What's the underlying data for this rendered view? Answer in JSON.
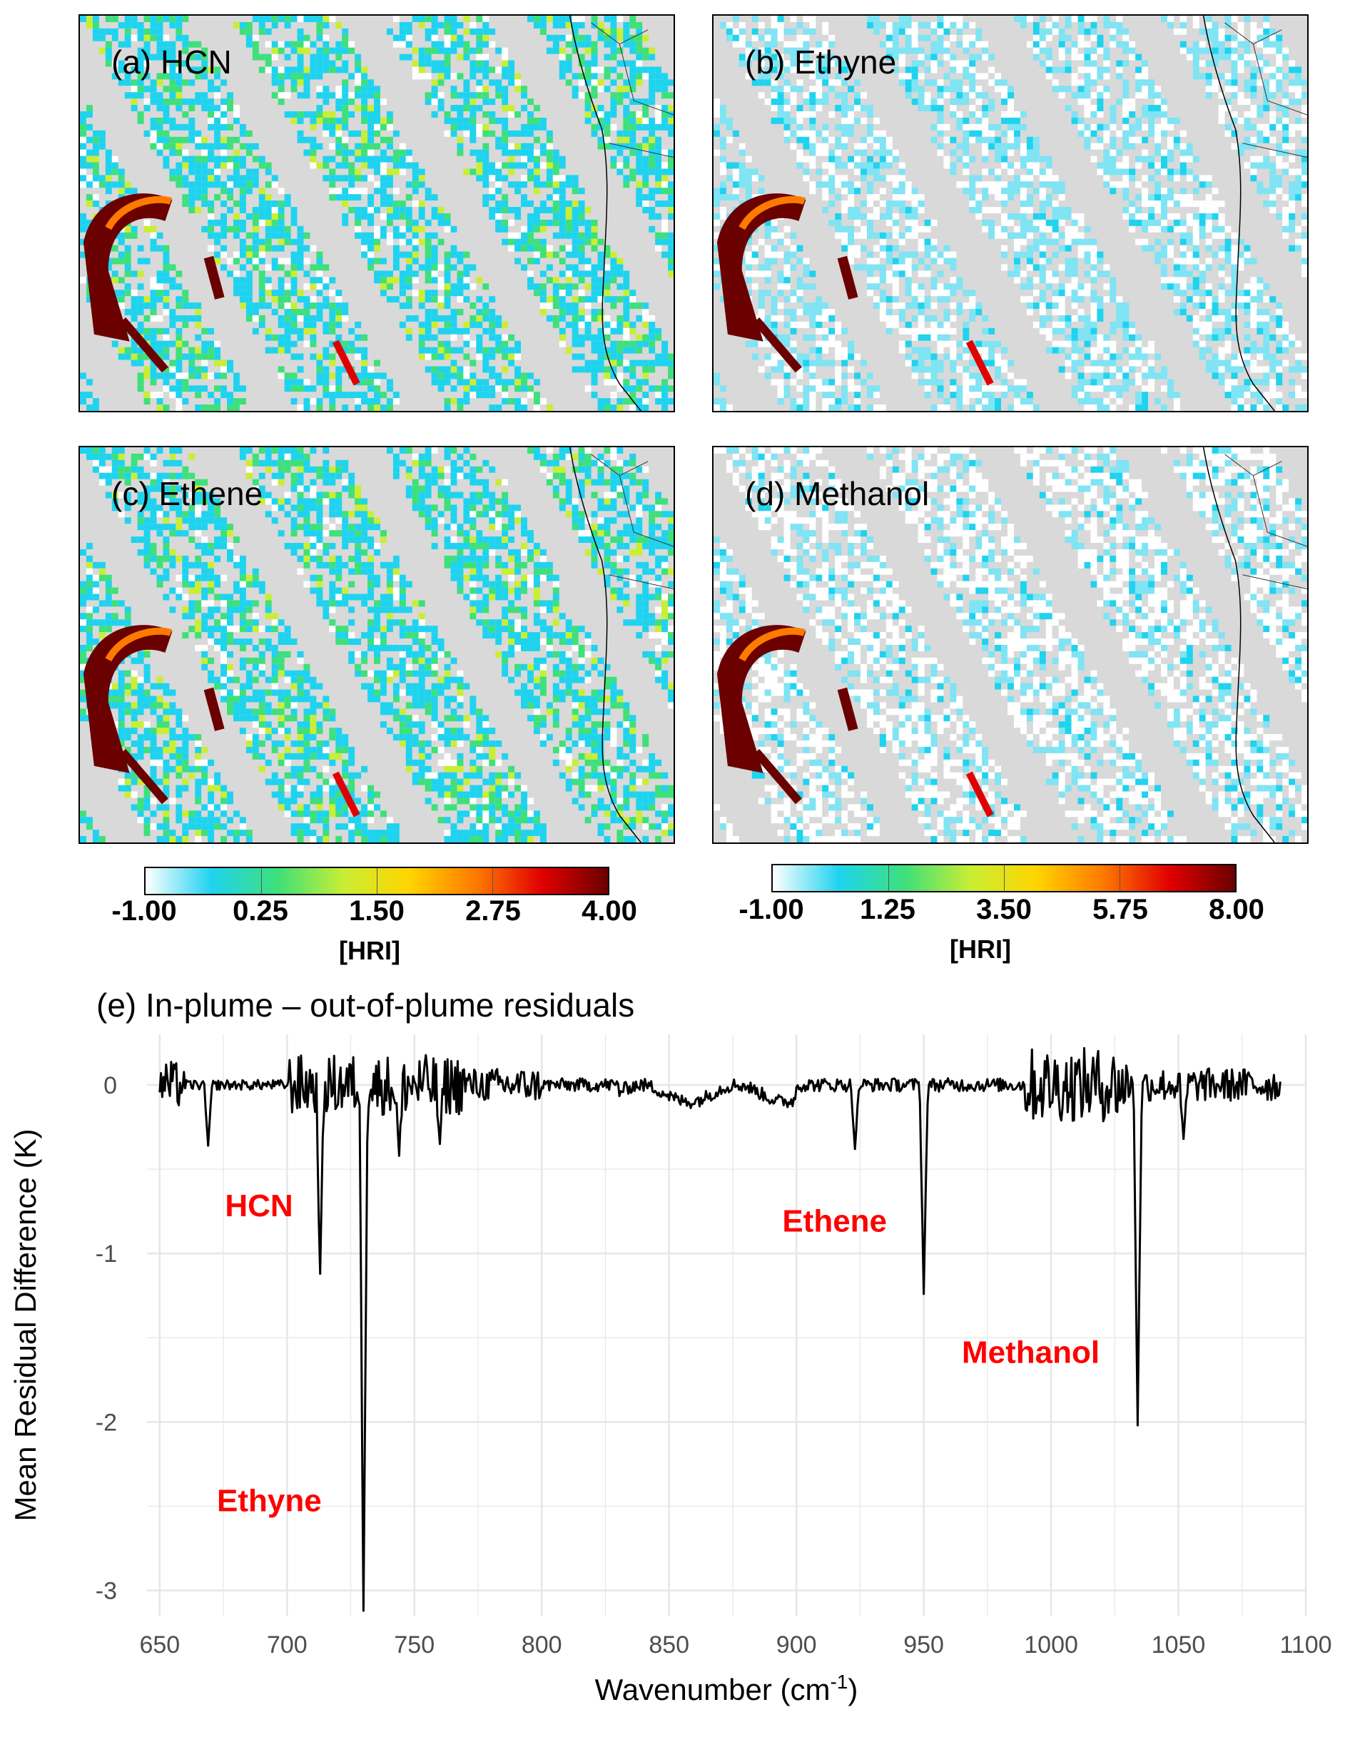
{
  "panels": [
    {
      "label": "(a) HCN",
      "target": "map-a"
    },
    {
      "label": "(b) Ethyne",
      "target": "map-b"
    },
    {
      "label": "(c) Ethene",
      "target": "map-c"
    },
    {
      "label": "(d) Methanol",
      "target": "map-d"
    }
  ],
  "colorbars": [
    {
      "ticks": [
        "-1.00",
        "0.25",
        "1.50",
        "2.75",
        "4.00"
      ],
      "unit": "[HRI]"
    },
    {
      "ticks": [
        "-1.00",
        "1.25",
        "3.50",
        "5.75",
        "8.00"
      ],
      "unit": "[HRI]"
    }
  ],
  "colors": {
    "no_data": "#d9d9d9",
    "colormap": [
      "#ffffff",
      "#1fd3ef",
      "#3ee07a",
      "#c9ee33",
      "#ffd400",
      "#ff7a00",
      "#e10000",
      "#6b0000"
    ],
    "spectrum_line": "#000000",
    "annotation": "#ff0000",
    "grid": "#e6e6e6"
  },
  "chart_data": {
    "type": "line",
    "title": "(e) In-plume – out-of-plume residuals",
    "xlabel": "Wavenumber (cm",
    "xlabel_sup": "-1",
    "xlabel_end": ")",
    "ylabel": "Mean Residual Difference (K)",
    "xlim": [
      650,
      1090
    ],
    "ylim": [
      -3.15,
      0.3
    ],
    "xticks": [
      650,
      700,
      750,
      800,
      850,
      900,
      950,
      1000,
      1050,
      1100
    ],
    "yticks": [
      0,
      -1,
      -2,
      -3
    ],
    "grid": true,
    "baseline_noise": [
      {
        "from": 650,
        "to": 660,
        "amp": 0.14
      },
      {
        "from": 660,
        "to": 700,
        "amp": 0.03
      },
      {
        "from": 700,
        "to": 770,
        "amp": 0.18
      },
      {
        "from": 770,
        "to": 800,
        "amp": 0.1
      },
      {
        "from": 800,
        "to": 990,
        "amp": 0.04
      },
      {
        "from": 990,
        "to": 1030,
        "amp": 0.22
      },
      {
        "from": 1030,
        "to": 1090,
        "amp": 0.1
      }
    ],
    "peaks": [
      {
        "x": 669,
        "y": -0.36
      },
      {
        "x": 713,
        "y": -1.12
      },
      {
        "x": 730,
        "y": -3.12
      },
      {
        "x": 744,
        "y": -0.42
      },
      {
        "x": 760,
        "y": -0.35
      },
      {
        "x": 923,
        "y": -0.38
      },
      {
        "x": 950,
        "y": -1.24
      },
      {
        "x": 1034,
        "y": -2.02
      },
      {
        "x": 1052,
        "y": -0.32
      }
    ],
    "annotations": [
      {
        "text": "HCN",
        "x": 689,
        "y": -0.78
      },
      {
        "text": "Ethyne",
        "x": 693,
        "y": -2.53
      },
      {
        "text": "Ethene",
        "x": 915,
        "y": -0.87
      },
      {
        "text": "Methanol",
        "x": 992,
        "y": -1.65
      }
    ]
  }
}
